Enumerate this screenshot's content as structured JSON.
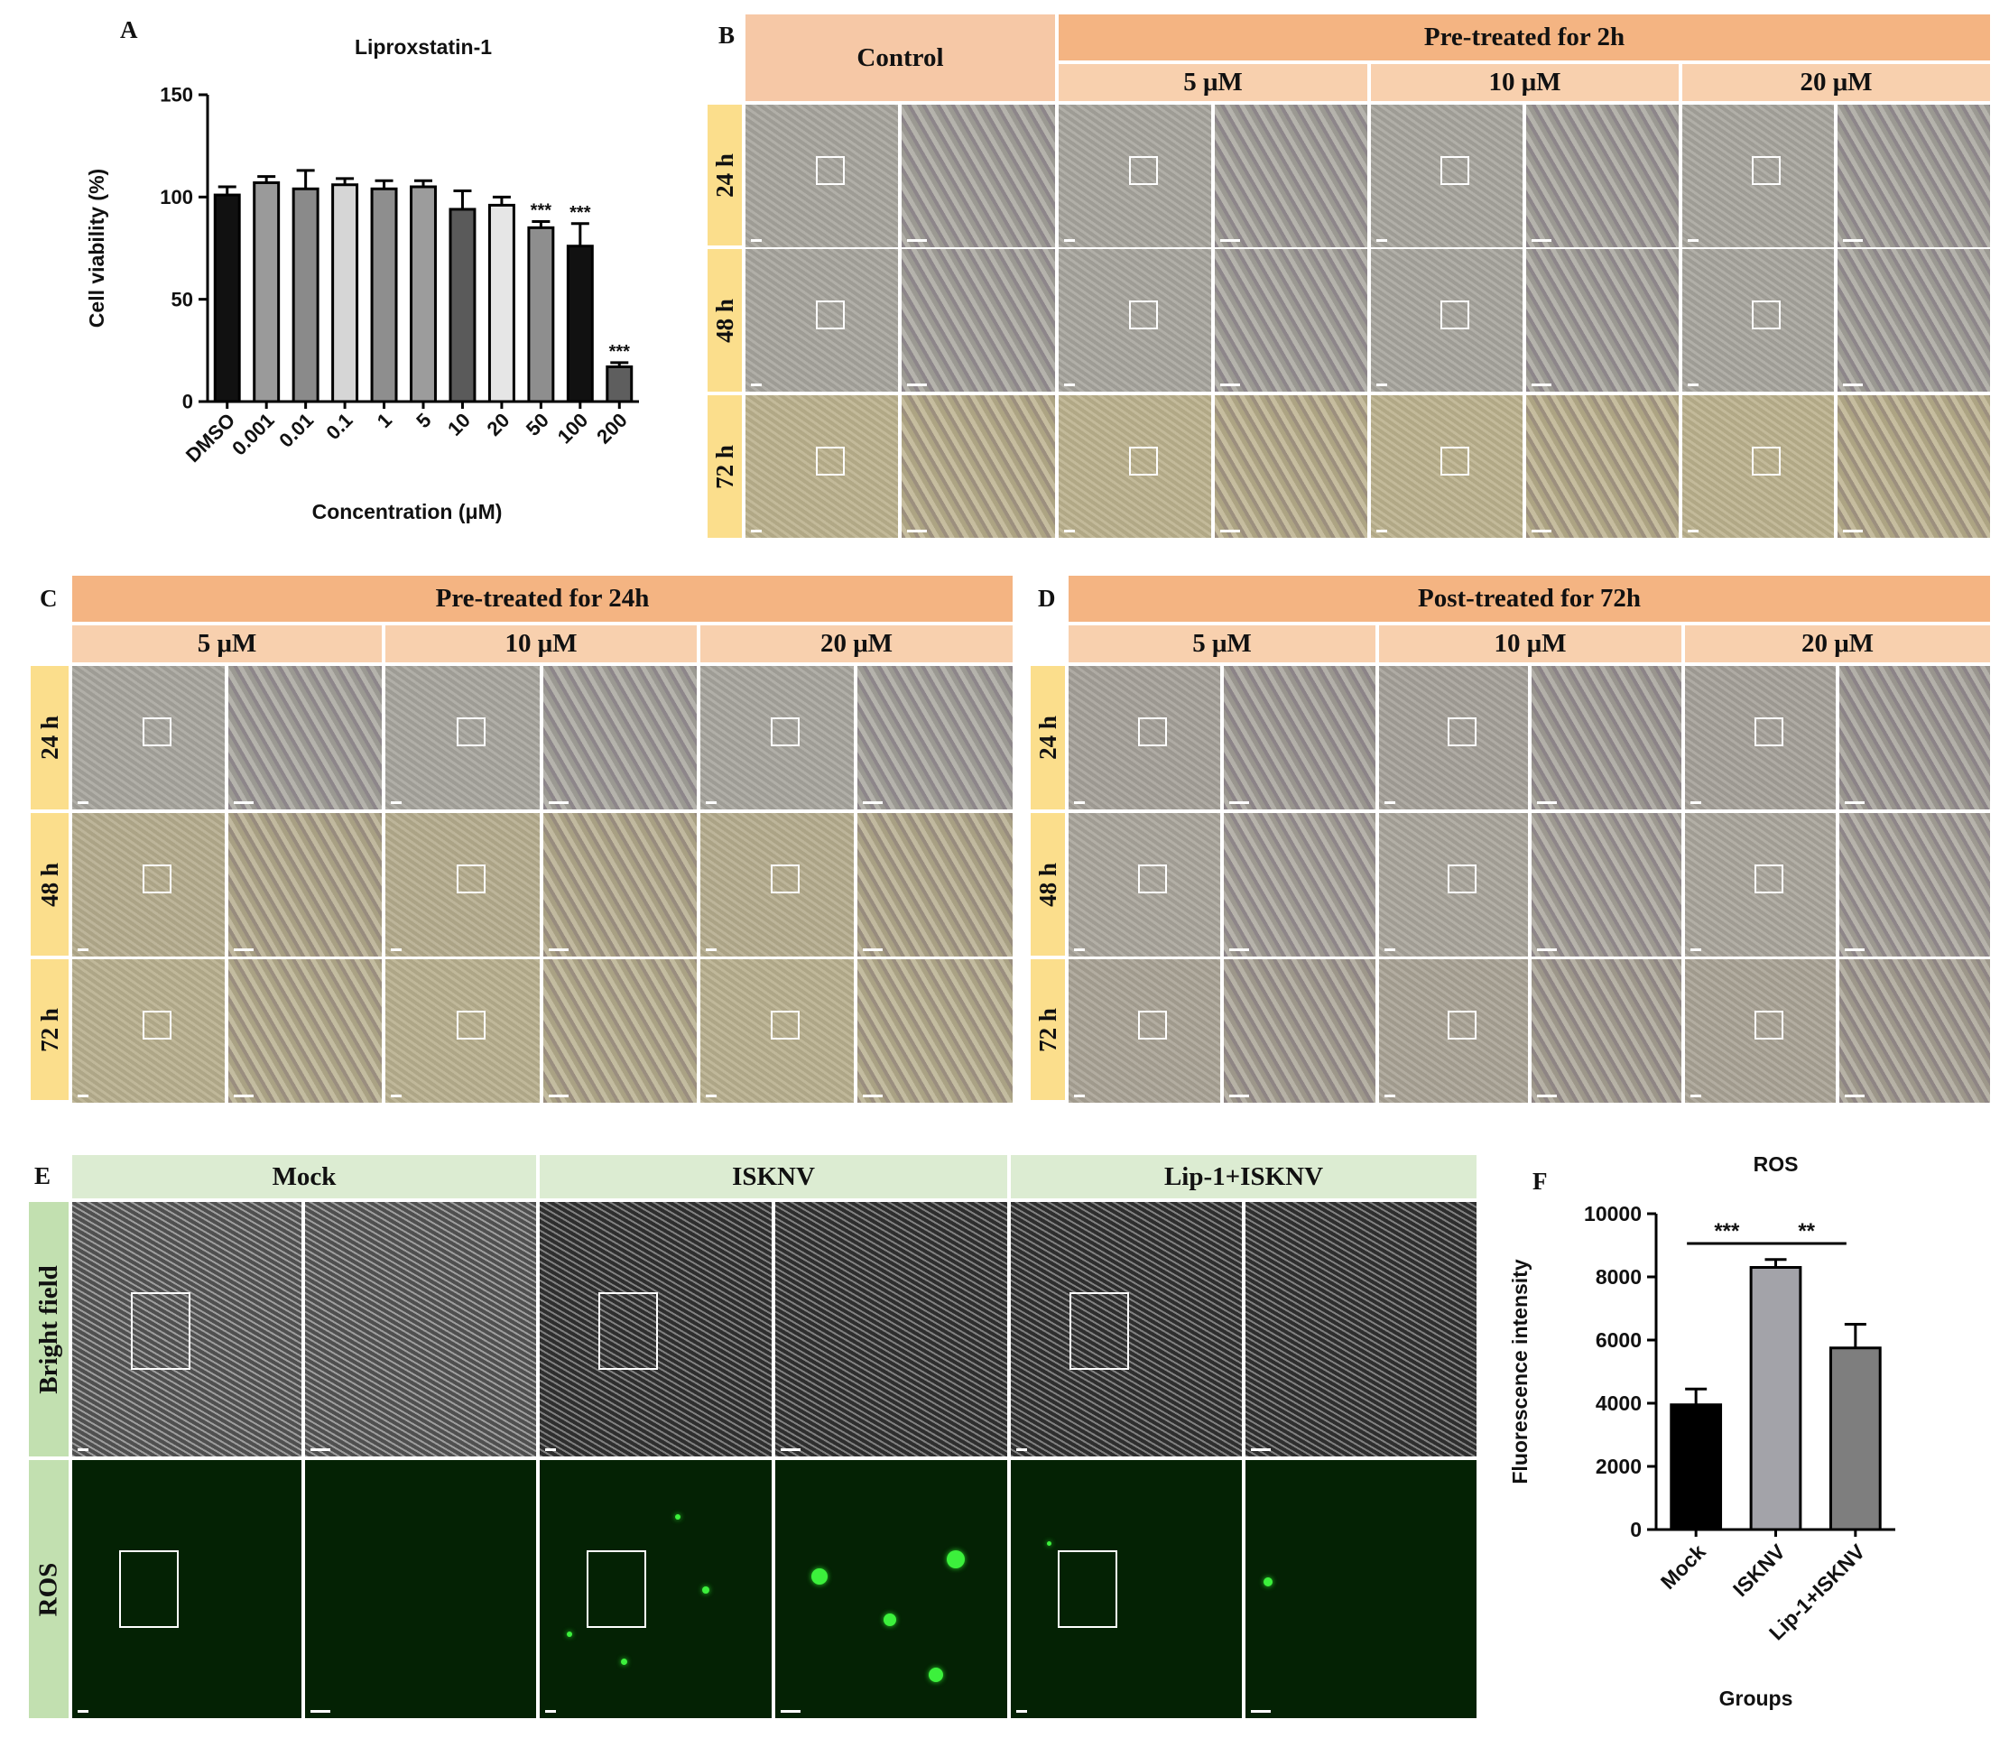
{
  "panel_labels": {
    "A": "A",
    "B": "B",
    "C": "C",
    "D": "D",
    "E": "E",
    "F": "F"
  },
  "colors": {
    "header_orange": "#f4b482",
    "subheader_peach": "#f8d0ae",
    "control_header": "#f6c8a6",
    "row_label_yellow": "#fbde8c",
    "e_header_green": "#dcecd2",
    "e_row_green": "#c2e0b0",
    "phase_gray": "#a8a69e",
    "phase_yellow": "#bcb28e",
    "bright_field": "#5a5a5a",
    "ros_fluor": "#042204"
  },
  "panel_b": {
    "control": "Control",
    "group": "Pre-treated for 2h",
    "concentrations": [
      "5 μM",
      "10 μM",
      "20 μM"
    ],
    "times": [
      "24 h",
      "48 h",
      "72 h"
    ]
  },
  "panel_c": {
    "group": "Pre-treated for 24h",
    "concentrations": [
      "5 μM",
      "10 μM",
      "20 μM"
    ],
    "times": [
      "24 h",
      "48 h",
      "72 h"
    ]
  },
  "panel_d": {
    "group": "Post-treated for 72h",
    "concentrations": [
      "5 μM",
      "10 μM",
      "20 μM"
    ],
    "times": [
      "24 h",
      "48 h",
      "72 h"
    ]
  },
  "panel_e": {
    "columns": [
      "Mock",
      "ISKNV",
      "Lip-1+ISKNV"
    ],
    "rows": [
      "Bright field",
      "ROS"
    ]
  },
  "chart_data": [
    {
      "panel": "A",
      "type": "bar",
      "title": "Liproxstatin-1",
      "xlabel": "Concentration (μM)",
      "ylabel": "Cell viability (%)",
      "ylim": [
        0,
        150
      ],
      "yticks": [
        0,
        50,
        100,
        150
      ],
      "categories": [
        "DMSO",
        "0.001",
        "0.01",
        "0.1",
        "1",
        "5",
        "10",
        "20",
        "50",
        "100",
        "200"
      ],
      "values": [
        101,
        107,
        104,
        106,
        104,
        105,
        94,
        96,
        85,
        76,
        17
      ],
      "errors": [
        4,
        3,
        9,
        3,
        4,
        3,
        9,
        4,
        3,
        11,
        2
      ],
      "bar_colors": [
        "#111111",
        "#9a9a9a",
        "#8a8a8a",
        "#d6d6d6",
        "#8e8e8e",
        "#9c9c9c",
        "#5a5a5a",
        "#e6e6e6",
        "#8e8e8e",
        "#111111",
        "#5e5e5e"
      ],
      "annotations": [
        {
          "category": "50",
          "text": "***"
        },
        {
          "category": "100",
          "text": "***"
        },
        {
          "category": "200",
          "text": "***"
        }
      ]
    },
    {
      "panel": "F",
      "type": "bar",
      "title": "ROS",
      "xlabel": "Groups",
      "ylabel": "Fluorescence intensity",
      "ylim": [
        0,
        10000
      ],
      "yticks": [
        0,
        2000,
        4000,
        6000,
        8000,
        10000
      ],
      "categories": [
        "Mock",
        "ISKNV",
        "Lip-1+ISKNV"
      ],
      "values": [
        3950,
        8300,
        5750
      ],
      "errors": [
        500,
        250,
        750
      ],
      "bar_colors": [
        "#000000",
        "#a3a3a9",
        "#7e7e7e"
      ],
      "significance": [
        {
          "from": "Mock",
          "to": "ISKNV",
          "text": "***"
        },
        {
          "from": "ISKNV",
          "to": "Lip-1+ISKNV",
          "text": "**"
        }
      ]
    }
  ]
}
